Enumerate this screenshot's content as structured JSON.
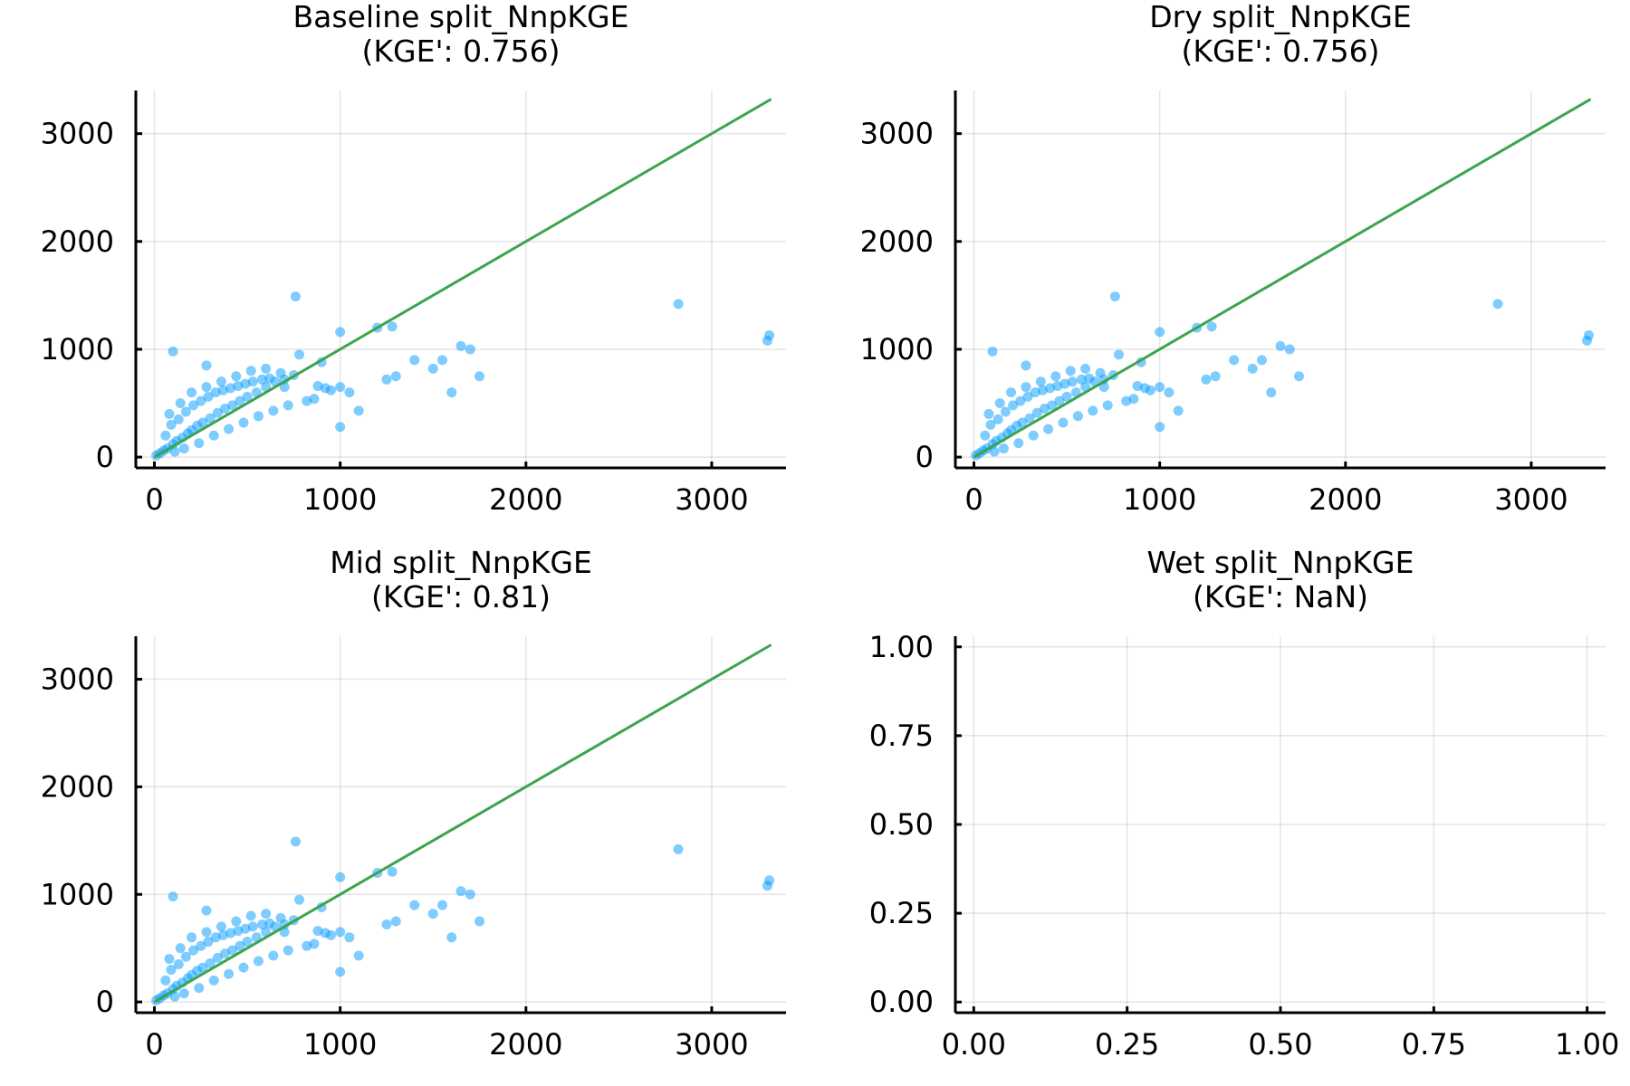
{
  "chart_data": [
    {
      "type": "scatter",
      "title": "Baseline split_NnpKGE",
      "subtitle": "(KGE': 0.756)",
      "xlim": [
        -100,
        3400
      ],
      "ylim": [
        -100,
        3400
      ],
      "xticks": [
        0,
        1000,
        2000,
        3000
      ],
      "xtick_labels": [
        "0",
        "1000",
        "2000",
        "3000"
      ],
      "yticks": [
        0,
        1000,
        2000,
        3000
      ],
      "ytick_labels": [
        "0",
        "1000",
        "2000",
        "3000"
      ],
      "grid": true,
      "legend": "none",
      "series": [
        {
          "kind": "scatter",
          "color": "#0099ff",
          "x": [
            10,
            30,
            50,
            70,
            100,
            120,
            150,
            180,
            200,
            230,
            260,
            300,
            340,
            380,
            420,
            460,
            500,
            550,
            600,
            650,
            700,
            750,
            60,
            90,
            130,
            170,
            210,
            250,
            290,
            330,
            370,
            410,
            450,
            490,
            530,
            580,
            620,
            680,
            110,
            160,
            240,
            320,
            400,
            480,
            560,
            640,
            720,
            80,
            140,
            200,
            280,
            360,
            440,
            520,
            600,
            700,
            900,
            950,
            1000,
            1050,
            1100,
            1200,
            1250,
            1300,
            1400,
            1500,
            1550,
            1600,
            1650,
            1700,
            1750,
            780,
            820,
            860,
            880,
            920,
            1000,
            1280,
            2820,
            3300,
            3310,
            100,
            280,
            760,
            1000
          ],
          "y": [
            15,
            35,
            60,
            80,
            120,
            150,
            180,
            220,
            250,
            290,
            320,
            360,
            410,
            450,
            480,
            520,
            560,
            600,
            650,
            700,
            720,
            760,
            200,
            300,
            350,
            420,
            480,
            520,
            560,
            600,
            620,
            640,
            660,
            680,
            700,
            720,
            730,
            780,
            50,
            80,
            130,
            200,
            260,
            320,
            380,
            430,
            480,
            400,
            500,
            600,
            650,
            700,
            750,
            800,
            820,
            650,
            880,
            620,
            650,
            600,
            430,
            1200,
            720,
            750,
            900,
            820,
            900,
            600,
            1030,
            1000,
            750,
            950,
            520,
            540,
            660,
            640,
            280,
            1210,
            1420,
            1080,
            1130,
            980,
            850,
            1490,
            1160
          ]
        },
        {
          "kind": "line",
          "color": "#3da44d",
          "x": [
            0,
            3320
          ],
          "y": [
            0,
            3320
          ]
        }
      ]
    },
    {
      "type": "scatter",
      "title": "Dry split_NnpKGE",
      "subtitle": "(KGE': 0.756)",
      "xlim": [
        -100,
        3400
      ],
      "ylim": [
        -100,
        3400
      ],
      "xticks": [
        0,
        1000,
        2000,
        3000
      ],
      "xtick_labels": [
        "0",
        "1000",
        "2000",
        "3000"
      ],
      "yticks": [
        0,
        1000,
        2000,
        3000
      ],
      "ytick_labels": [
        "0",
        "1000",
        "2000",
        "3000"
      ],
      "grid": true,
      "legend": "none",
      "series": [
        {
          "kind": "scatter",
          "color": "#0099ff",
          "x": [
            10,
            30,
            50,
            70,
            100,
            120,
            150,
            180,
            200,
            230,
            260,
            300,
            340,
            380,
            420,
            460,
            500,
            550,
            600,
            650,
            700,
            750,
            60,
            90,
            130,
            170,
            210,
            250,
            290,
            330,
            370,
            410,
            450,
            490,
            530,
            580,
            620,
            680,
            110,
            160,
            240,
            320,
            400,
            480,
            560,
            640,
            720,
            80,
            140,
            200,
            280,
            360,
            440,
            520,
            600,
            700,
            900,
            950,
            1000,
            1050,
            1100,
            1200,
            1250,
            1300,
            1400,
            1500,
            1550,
            1600,
            1650,
            1700,
            1750,
            780,
            820,
            860,
            880,
            920,
            1000,
            1280,
            2820,
            3300,
            3310,
            100,
            280,
            760,
            1000
          ],
          "y": [
            15,
            35,
            60,
            80,
            120,
            150,
            180,
            220,
            250,
            290,
            320,
            360,
            410,
            450,
            480,
            520,
            560,
            600,
            650,
            700,
            720,
            760,
            200,
            300,
            350,
            420,
            480,
            520,
            560,
            600,
            620,
            640,
            660,
            680,
            700,
            720,
            730,
            780,
            50,
            80,
            130,
            200,
            260,
            320,
            380,
            430,
            480,
            400,
            500,
            600,
            650,
            700,
            750,
            800,
            820,
            650,
            880,
            620,
            650,
            600,
            430,
            1200,
            720,
            750,
            900,
            820,
            900,
            600,
            1030,
            1000,
            750,
            950,
            520,
            540,
            660,
            640,
            280,
            1210,
            1420,
            1080,
            1130,
            980,
            850,
            1490,
            1160
          ]
        },
        {
          "kind": "line",
          "color": "#3da44d",
          "x": [
            0,
            3320
          ],
          "y": [
            0,
            3320
          ]
        }
      ]
    },
    {
      "type": "scatter",
      "title": "Mid split_NnpKGE",
      "subtitle": "(KGE': 0.81)",
      "xlim": [
        -100,
        3400
      ],
      "ylim": [
        -100,
        3400
      ],
      "xticks": [
        0,
        1000,
        2000,
        3000
      ],
      "xtick_labels": [
        "0",
        "1000",
        "2000",
        "3000"
      ],
      "yticks": [
        0,
        1000,
        2000,
        3000
      ],
      "ytick_labels": [
        "0",
        "1000",
        "2000",
        "3000"
      ],
      "grid": true,
      "legend": "none",
      "series": [
        {
          "kind": "scatter",
          "color": "#0099ff",
          "x": [
            10,
            30,
            50,
            70,
            100,
            120,
            150,
            180,
            200,
            230,
            260,
            300,
            340,
            380,
            420,
            460,
            500,
            550,
            600,
            650,
            700,
            750,
            60,
            90,
            130,
            170,
            210,
            250,
            290,
            330,
            370,
            410,
            450,
            490,
            530,
            580,
            620,
            680,
            110,
            160,
            240,
            320,
            400,
            480,
            560,
            640,
            720,
            80,
            140,
            200,
            280,
            360,
            440,
            520,
            600,
            700,
            900,
            950,
            1000,
            1050,
            1100,
            1200,
            1250,
            1300,
            1400,
            1500,
            1550,
            1600,
            1650,
            1700,
            1750,
            780,
            820,
            860,
            880,
            920,
            1000,
            1280,
            2820,
            3300,
            3310,
            100,
            280,
            760,
            1000
          ],
          "y": [
            15,
            35,
            60,
            80,
            120,
            150,
            180,
            220,
            250,
            290,
            320,
            360,
            410,
            450,
            480,
            520,
            560,
            600,
            650,
            700,
            720,
            760,
            200,
            300,
            350,
            420,
            480,
            520,
            560,
            600,
            620,
            640,
            660,
            680,
            700,
            720,
            730,
            780,
            50,
            80,
            130,
            200,
            260,
            320,
            380,
            430,
            480,
            400,
            500,
            600,
            650,
            700,
            750,
            800,
            820,
            650,
            880,
            620,
            650,
            600,
            430,
            1200,
            720,
            750,
            900,
            820,
            900,
            600,
            1030,
            1000,
            750,
            950,
            520,
            540,
            660,
            640,
            280,
            1210,
            1420,
            1080,
            1130,
            980,
            850,
            1490,
            1160
          ]
        },
        {
          "kind": "line",
          "color": "#3da44d",
          "x": [
            0,
            3320
          ],
          "y": [
            0,
            3320
          ]
        }
      ]
    },
    {
      "type": "scatter",
      "title": "Wet split_NnpKGE",
      "subtitle": "(KGE': NaN)",
      "xlim": [
        -0.03,
        1.03
      ],
      "ylim": [
        -0.03,
        1.03
      ],
      "xticks": [
        0,
        0.25,
        0.5,
        0.75,
        1.0
      ],
      "xtick_labels": [
        "0.00",
        "0.25",
        "0.50",
        "0.75",
        "1.00"
      ],
      "yticks": [
        0,
        0.25,
        0.5,
        0.75,
        1.0
      ],
      "ytick_labels": [
        "0.00",
        "0.25",
        "0.50",
        "0.75",
        "1.00"
      ],
      "grid": true,
      "legend": "none",
      "series": []
    }
  ]
}
